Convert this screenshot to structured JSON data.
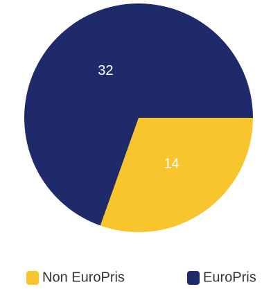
{
  "chart_data": {
    "type": "pie",
    "categories": [
      "Non EuroPris",
      "EuroPris"
    ],
    "values": [
      14,
      32
    ],
    "colors": [
      "#f8c62c",
      "#1f2a6a"
    ],
    "legend": "bottom"
  }
}
